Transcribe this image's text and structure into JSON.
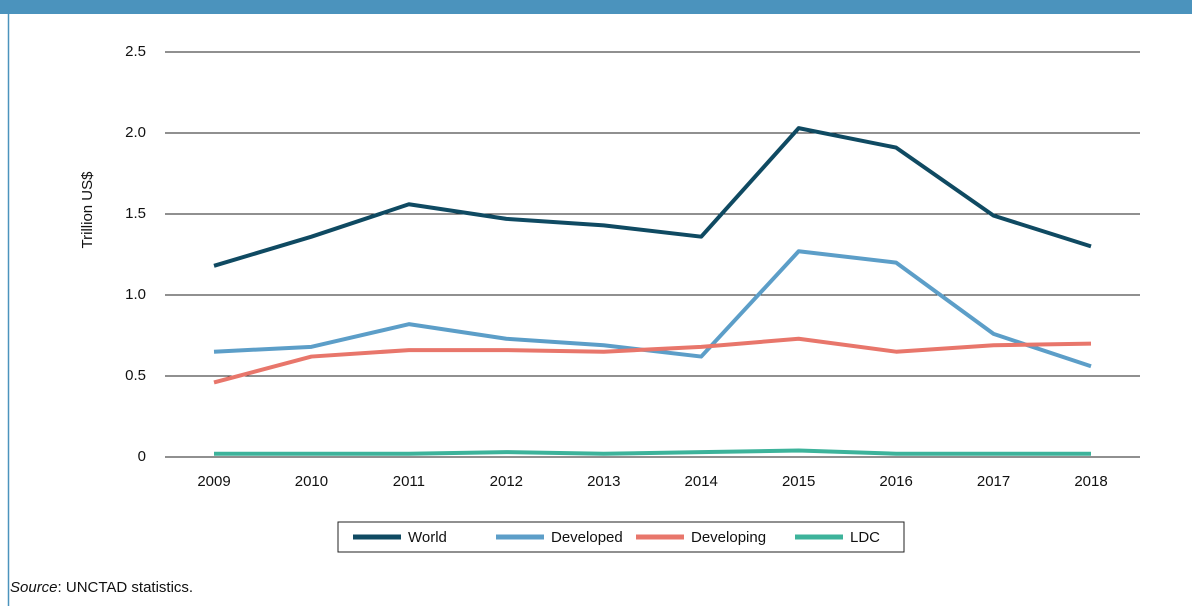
{
  "chart_data": {
    "type": "line",
    "y_axis_label": "Trillion US$",
    "categories": [
      "2009",
      "2010",
      "2011",
      "2012",
      "2013",
      "2014",
      "2015",
      "2016",
      "2017",
      "2018"
    ],
    "series": [
      {
        "name": "World",
        "color": "#0f4a62",
        "values": [
          1.18,
          1.36,
          1.56,
          1.47,
          1.43,
          1.36,
          2.03,
          1.91,
          1.49,
          1.3
        ]
      },
      {
        "name": "Developed",
        "color": "#5c9ec8",
        "values": [
          0.65,
          0.68,
          0.82,
          0.73,
          0.69,
          0.62,
          1.27,
          1.2,
          0.76,
          0.56
        ]
      },
      {
        "name": "Developing",
        "color": "#e8766b",
        "values": [
          0.46,
          0.62,
          0.66,
          0.66,
          0.65,
          0.68,
          0.73,
          0.65,
          0.69,
          0.7
        ]
      },
      {
        "name": "LDC",
        "color": "#3db39b",
        "values": [
          0.02,
          0.02,
          0.02,
          0.03,
          0.02,
          0.03,
          0.04,
          0.02,
          0.02,
          0.02
        ]
      }
    ],
    "ylim": [
      0,
      2.5
    ],
    "yticks": [
      0,
      0.5,
      {
        "value": 1,
        "label": "1.0"
      },
      1.5,
      {
        "value": 2,
        "label": "2.0"
      },
      2.5
    ],
    "grid": true,
    "legend": "bottom",
    "source_label": "Source",
    "source_text": ": UNCTAD statistics."
  }
}
